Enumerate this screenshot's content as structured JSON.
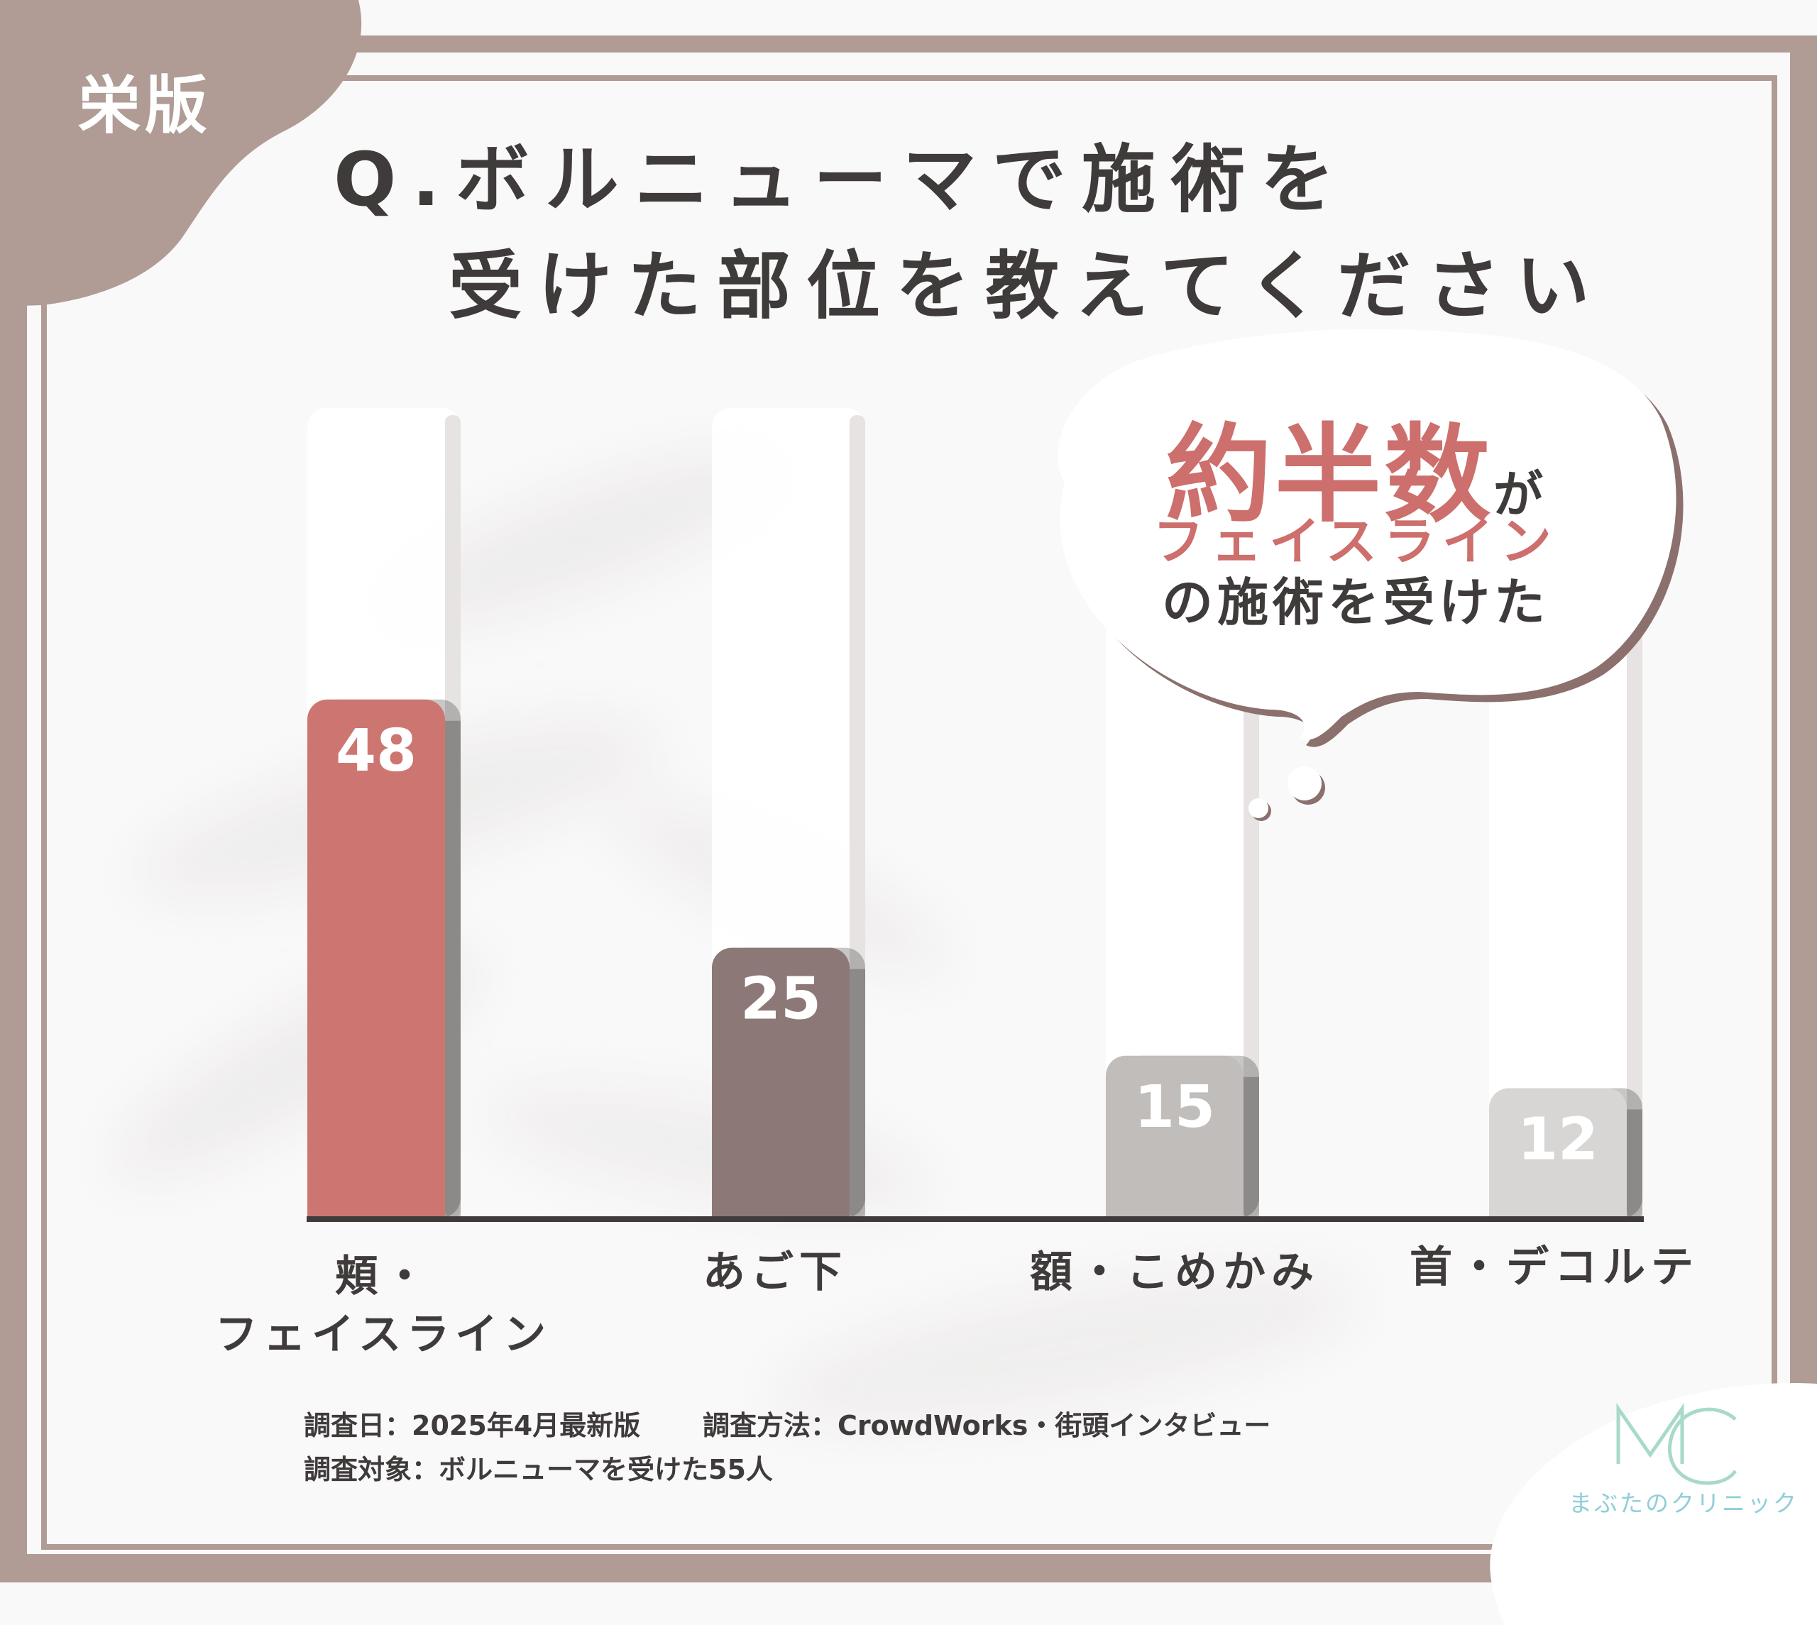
{
  "badge": "栄版",
  "title": {
    "line1": "Q.ボルニューマで施術を",
    "line2": "受けた部位を教えてください"
  },
  "callout": {
    "emphasis": "約半数",
    "particle": "が",
    "line2": "フェイスライン",
    "line3": "の施術を受けた"
  },
  "chart_data": {
    "type": "bar",
    "categories": [
      "頬・フェイスライン",
      "あご下",
      "額・こめかみ",
      "首・デコルテ"
    ],
    "category_lines": [
      [
        "頬・",
        "フェイスライン"
      ],
      [
        "あご下"
      ],
      [
        "額・こめかみ"
      ],
      [
        "首・デコルテ"
      ]
    ],
    "values": [
      48,
      25,
      15,
      12
    ],
    "value_labels": [
      "48",
      "25",
      "15",
      "12"
    ],
    "colors": [
      "#cd7671",
      "#8c7877",
      "#c1bdbb",
      "#d8d6d5"
    ],
    "ylim": [
      0,
      75
    ],
    "grid": false,
    "title": "",
    "xlabel": "",
    "ylabel": ""
  },
  "notes": {
    "date": "調査日：2025年4月最新版",
    "method": "調査方法：CrowdWorks・街頭インタビュー",
    "target": "調査対象：ボルニューマを受けた55人"
  },
  "logo": {
    "mark": "MC",
    "name": "まぶたのクリニック"
  },
  "colors": {
    "frame": "#b09b95",
    "accent": "#cd6f6c",
    "text": "#3f3b3b"
  }
}
